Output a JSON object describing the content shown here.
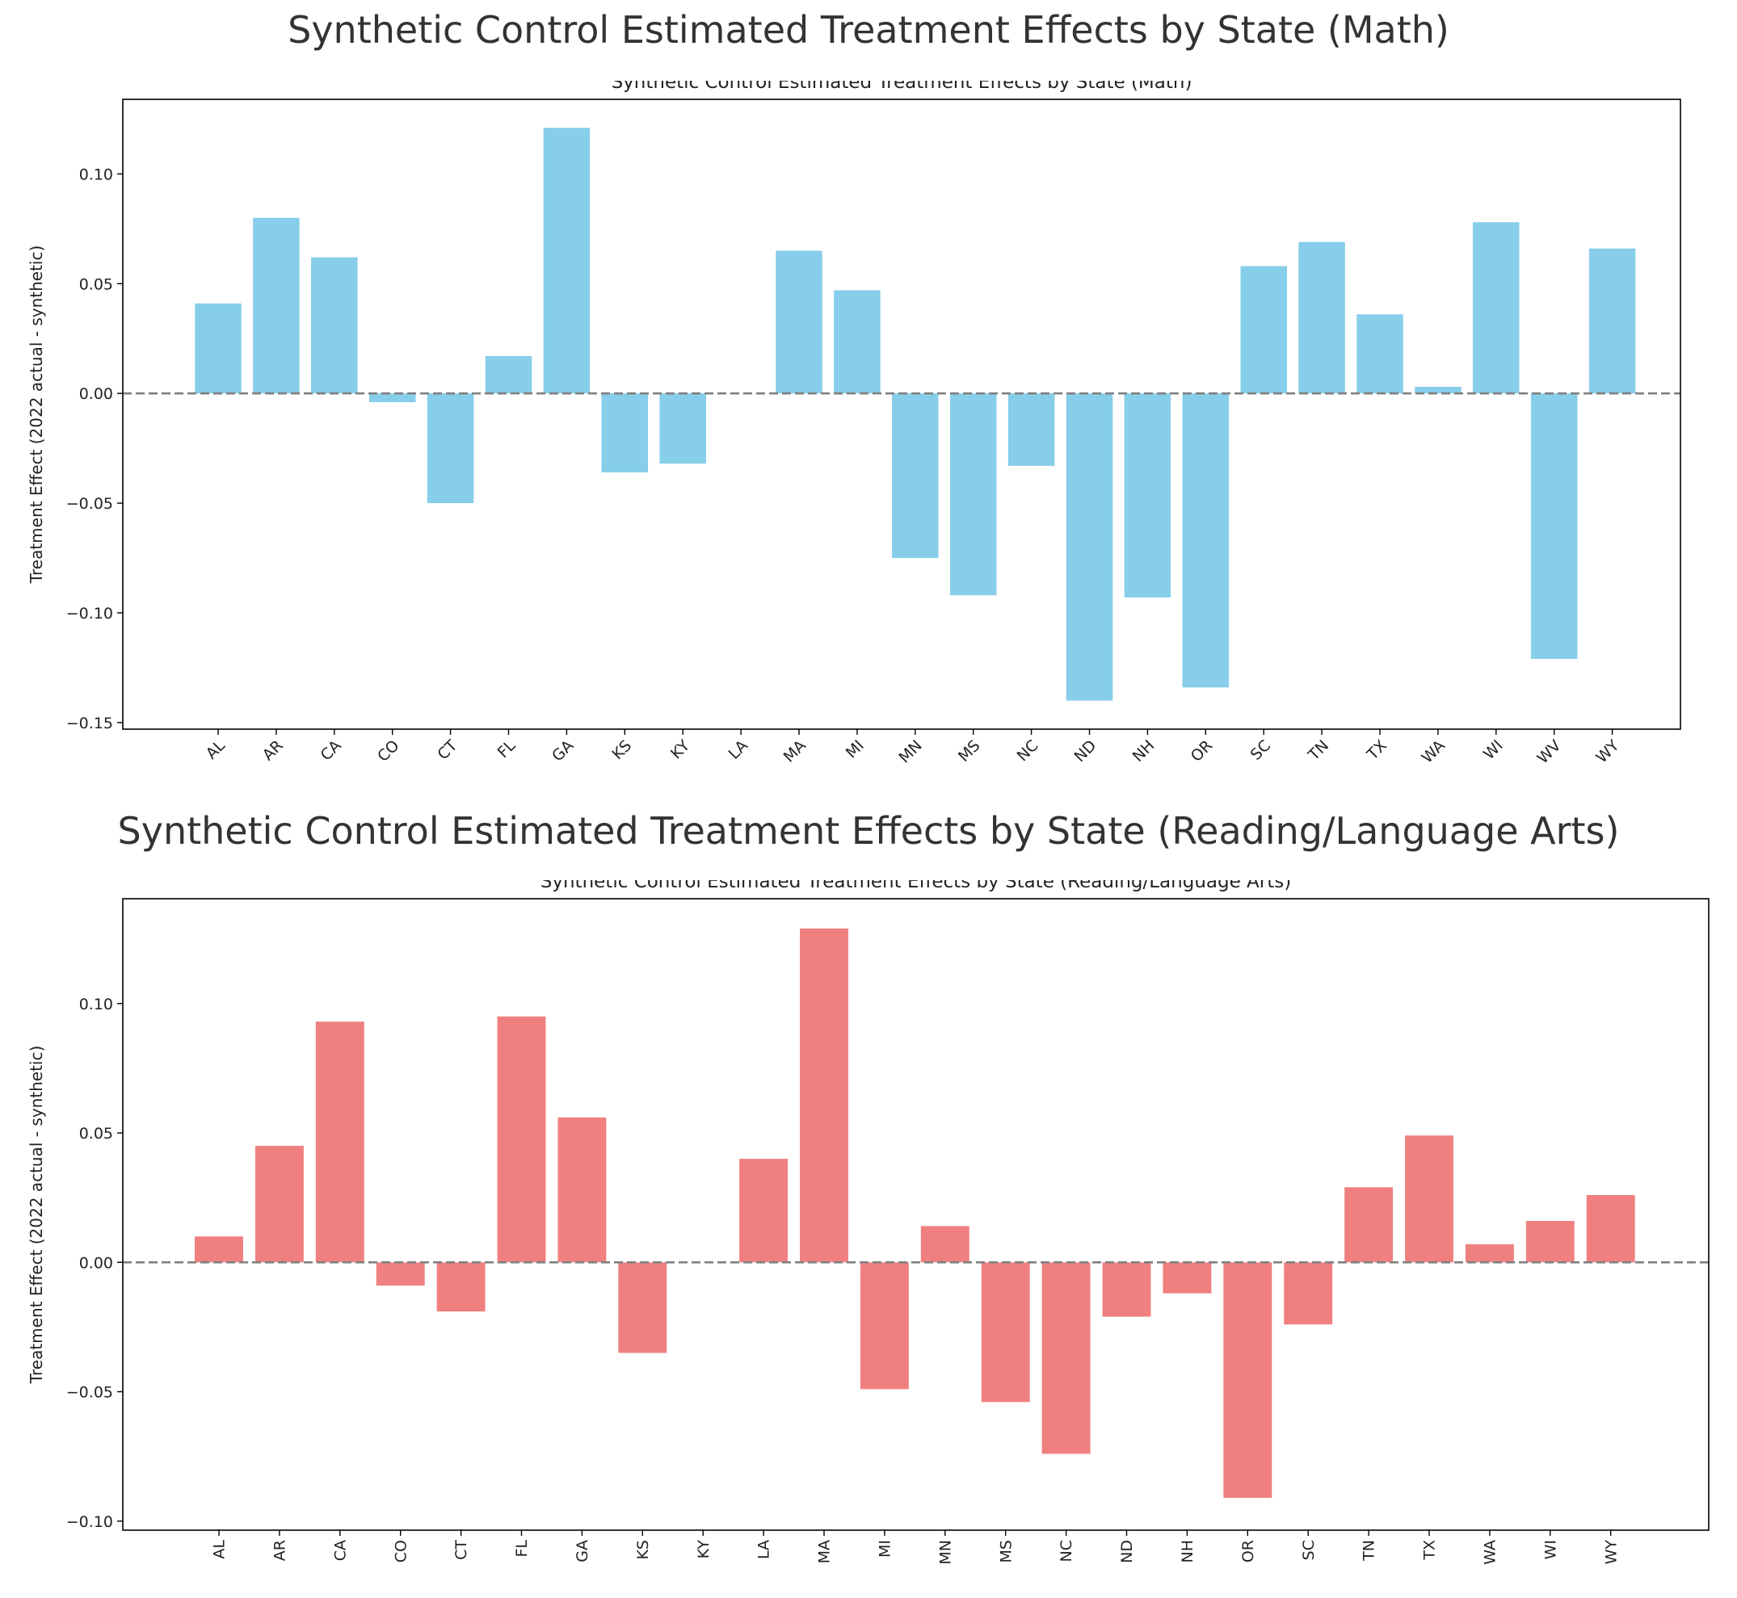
{
  "figure_titles": {
    "math": "Synthetic Control Estimated Treatment Effects by State (Math)",
    "reading": "Synthetic Control Estimated Treatment Effects by State (Reading/Language Arts)"
  },
  "chart_data": [
    {
      "type": "bar",
      "title": "Synthetic Control Estimated Treatment Effects by State (Math)",
      "xlabel": "",
      "ylabel": "Treatment Effect (2022 actual - synthetic)",
      "ylim": [
        -0.153,
        0.134
      ],
      "yticks": [
        -0.15,
        -0.1,
        -0.05,
        0.0,
        0.05,
        0.1
      ],
      "ytick_labels": [
        "−0.15",
        "−0.10",
        "−0.05",
        "0.00",
        "0.05",
        "0.10"
      ],
      "color": "#87CEEB",
      "reference_line": 0,
      "grid": false,
      "xtick_rotation": 45,
      "categories": [
        "AL",
        "AR",
        "CA",
        "CO",
        "CT",
        "FL",
        "GA",
        "KS",
        "KY",
        "LA",
        "MA",
        "MI",
        "MN",
        "MS",
        "NC",
        "ND",
        "NH",
        "OR",
        "SC",
        "TN",
        "TX",
        "WA",
        "WI",
        "WV",
        "WY"
      ],
      "values": [
        0.041,
        0.08,
        0.062,
        -0.004,
        -0.05,
        0.017,
        0.121,
        -0.036,
        -0.032,
        0.0,
        0.065,
        0.047,
        -0.075,
        -0.092,
        -0.033,
        -0.14,
        -0.093,
        -0.134,
        0.058,
        0.069,
        0.036,
        0.003,
        0.078,
        -0.121,
        0.066
      ]
    },
    {
      "type": "bar",
      "title": "Synthetic Control Estimated Treatment Effects by State (Reading/Language Arts)",
      "xlabel": "",
      "ylabel": "Treatment Effect (2022 actual - synthetic)",
      "ylim": [
        -0.1035,
        0.1405
      ],
      "yticks": [
        -0.1,
        -0.05,
        0.0,
        0.05,
        0.1
      ],
      "ytick_labels": [
        "−0.10",
        "−0.05",
        "0.00",
        "0.05",
        "0.10"
      ],
      "color": "#F08080",
      "reference_line": 0,
      "grid": false,
      "xtick_rotation": 90,
      "categories": [
        "AL",
        "AR",
        "CA",
        "CO",
        "CT",
        "FL",
        "GA",
        "KS",
        "KY",
        "LA",
        "MA",
        "MI",
        "MN",
        "MS",
        "NC",
        "ND",
        "NH",
        "OR",
        "SC",
        "TN",
        "TX",
        "WA",
        "WI",
        "WY"
      ],
      "values": [
        0.01,
        0.045,
        0.093,
        -0.009,
        -0.019,
        0.095,
        0.056,
        -0.035,
        0.0,
        0.04,
        0.129,
        -0.049,
        0.014,
        -0.054,
        -0.074,
        -0.021,
        -0.012,
        -0.091,
        -0.024,
        0.029,
        0.049,
        0.007,
        0.016,
        0.026
      ]
    }
  ]
}
